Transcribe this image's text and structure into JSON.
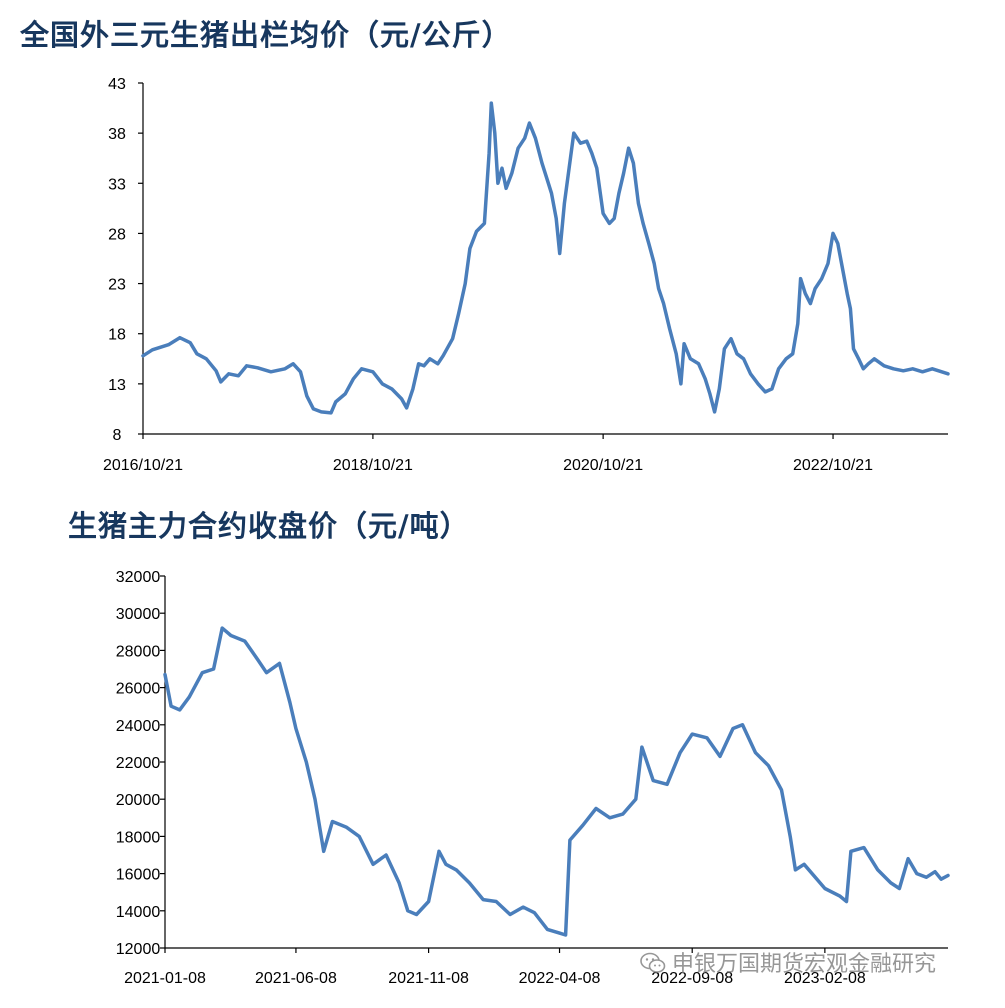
{
  "chart_data": [
    {
      "type": "line",
      "title": "全国外三元生猪出栏均价（元/公斤）",
      "ylim": [
        8,
        43
      ],
      "yticks": [
        8,
        13,
        18,
        23,
        28,
        33,
        38,
        43
      ],
      "xlim": [
        "2016/10/21",
        "2023/10/21"
      ],
      "xtick_labels": [
        "2016/10/21",
        "2018/10/21",
        "2020/10/21",
        "2022/10/21"
      ],
      "grid": false,
      "series": [
        {
          "color": "#4a7ebb",
          "points": [
            [
              "2016/10/21",
              15.8
            ],
            [
              "2016/11/20",
              16.4
            ],
            [
              "2017/01/10",
              16.9
            ],
            [
              "2017/02/15",
              17.6
            ],
            [
              "2017/03/20",
              17.1
            ],
            [
              "2017/04/10",
              16.0
            ],
            [
              "2017/05/10",
              15.5
            ],
            [
              "2017/06/10",
              14.3
            ],
            [
              "2017/06/25",
              13.2
            ],
            [
              "2017/07/20",
              14.0
            ],
            [
              "2017/08/20",
              13.8
            ],
            [
              "2017/09/15",
              14.8
            ],
            [
              "2017/10/20",
              14.6
            ],
            [
              "2017/12/01",
              14.2
            ],
            [
              "2018/01/15",
              14.5
            ],
            [
              "2018/02/10",
              15.0
            ],
            [
              "2018/03/05",
              14.2
            ],
            [
              "2018/03/25",
              11.8
            ],
            [
              "2018/04/15",
              10.5
            ],
            [
              "2018/05/10",
              10.2
            ],
            [
              "2018/06/10",
              10.1
            ],
            [
              "2018/06/25",
              11.2
            ],
            [
              "2018/07/25",
              12.0
            ],
            [
              "2018/08/20",
              13.5
            ],
            [
              "2018/09/15",
              14.5
            ],
            [
              "2018/10/21",
              14.2
            ],
            [
              "2018/11/20",
              13.0
            ],
            [
              "2018/12/20",
              12.5
            ],
            [
              "2019/01/20",
              11.5
            ],
            [
              "2019/02/05",
              10.6
            ],
            [
              "2019/02/25",
              12.5
            ],
            [
              "2019/03/15",
              15.0
            ],
            [
              "2019/04/01",
              14.8
            ],
            [
              "2019/04/20",
              15.5
            ],
            [
              "2019/05/15",
              15.0
            ],
            [
              "2019/06/01",
              15.8
            ],
            [
              "2019/07/01",
              17.5
            ],
            [
              "2019/07/20",
              20.0
            ],
            [
              "2019/08/10",
              23.0
            ],
            [
              "2019/08/25",
              26.5
            ],
            [
              "2019/09/15",
              28.2
            ],
            [
              "2019/10/10",
              29.0
            ],
            [
              "2019/10/25",
              36.0
            ],
            [
              "2019/11/01",
              41.0
            ],
            [
              "2019/11/12",
              38.0
            ],
            [
              "2019/11/22",
              33.0
            ],
            [
              "2019/12/05",
              34.5
            ],
            [
              "2019/12/18",
              32.5
            ],
            [
              "2020/01/05",
              34.0
            ],
            [
              "2020/01/25",
              36.5
            ],
            [
              "2020/02/15",
              37.5
            ],
            [
              "2020/03/01",
              39.0
            ],
            [
              "2020/03/20",
              37.5
            ],
            [
              "2020/04/10",
              35.0
            ],
            [
              "2020/04/25",
              33.5
            ],
            [
              "2020/05/10",
              32.0
            ],
            [
              "2020/05/25",
              29.5
            ],
            [
              "2020/06/05",
              26.0
            ],
            [
              "2020/06/20",
              31.0
            ],
            [
              "2020/07/05",
              34.5
            ],
            [
              "2020/07/20",
              38.0
            ],
            [
              "2020/08/10",
              37.0
            ],
            [
              "2020/08/30",
              37.2
            ],
            [
              "2020/09/15",
              36.0
            ],
            [
              "2020/10/01",
              34.5
            ],
            [
              "2020/10/21",
              30.0
            ],
            [
              "2020/11/10",
              29.0
            ],
            [
              "2020/11/25",
              29.5
            ],
            [
              "2020/12/10",
              32.0
            ],
            [
              "2020/12/25",
              34.0
            ],
            [
              "2021/01/10",
              36.5
            ],
            [
              "2021/01/25",
              35.0
            ],
            [
              "2021/02/10",
              31.0
            ],
            [
              "2021/02/25",
              29.0
            ],
            [
              "2021/03/15",
              27.0
            ],
            [
              "2021/04/01",
              25.0
            ],
            [
              "2021/04/15",
              22.5
            ],
            [
              "2021/05/01",
              21.0
            ],
            [
              "2021/05/20",
              18.5
            ],
            [
              "2021/06/10",
              16.0
            ],
            [
              "2021/06/25",
              13.0
            ],
            [
              "2021/07/05",
              17.0
            ],
            [
              "2021/07/25",
              15.5
            ],
            [
              "2021/08/20",
              15.0
            ],
            [
              "2021/09/10",
              13.5
            ],
            [
              "2021/09/25",
              12.0
            ],
            [
              "2021/10/10",
              10.2
            ],
            [
              "2021/10/25",
              12.5
            ],
            [
              "2021/11/10",
              16.5
            ],
            [
              "2021/12/01",
              17.5
            ],
            [
              "2021/12/20",
              16.0
            ],
            [
              "2022/01/10",
              15.5
            ],
            [
              "2022/02/01",
              14.0
            ],
            [
              "2022/02/25",
              13.0
            ],
            [
              "2022/03/20",
              12.2
            ],
            [
              "2022/04/10",
              12.5
            ],
            [
              "2022/05/01",
              14.5
            ],
            [
              "2022/05/25",
              15.5
            ],
            [
              "2022/06/15",
              16.0
            ],
            [
              "2022/07/01",
              19.0
            ],
            [
              "2022/07/10",
              23.5
            ],
            [
              "2022/07/25",
              22.0
            ],
            [
              "2022/08/10",
              21.0
            ],
            [
              "2022/08/25",
              22.5
            ],
            [
              "2022/09/15",
              23.5
            ],
            [
              "2022/10/05",
              25.0
            ],
            [
              "2022/10/21",
              28.0
            ],
            [
              "2022/11/05",
              27.0
            ],
            [
              "2022/11/20",
              24.5
            ],
            [
              "2022/12/05",
              22.0
            ],
            [
              "2022/12/15",
              20.5
            ],
            [
              "2022/12/25",
              16.5
            ],
            [
              "2023/01/10",
              15.5
            ],
            [
              "2023/01/25",
              14.5
            ],
            [
              "2023/02/10",
              15.0
            ],
            [
              "2023/03/01",
              15.5
            ],
            [
              "2023/04/01",
              14.8
            ],
            [
              "2023/05/01",
              14.5
            ],
            [
              "2023/06/01",
              14.3
            ],
            [
              "2023/07/01",
              14.5
            ],
            [
              "2023/08/01",
              14.2
            ],
            [
              "2023/09/01",
              14.5
            ],
            [
              "2023/10/21",
              14.0
            ]
          ]
        }
      ]
    },
    {
      "type": "line",
      "title": "生猪主力合约收盘价（元/吨）",
      "ylim": [
        12000,
        32000
      ],
      "yticks": [
        12000,
        14000,
        16000,
        18000,
        20000,
        22000,
        24000,
        26000,
        28000,
        30000,
        32000
      ],
      "xlim": [
        "2021-01-08",
        "2023-06-30"
      ],
      "xtick_labels": [
        "2021-01-08",
        "2021-06-08",
        "2021-11-08",
        "2022-04-08",
        "2022-09-08",
        "2023-02-08"
      ],
      "grid": false,
      "series": [
        {
          "color": "#4a7ebb",
          "points": [
            [
              "2021-01-08",
              26700
            ],
            [
              "2021-01-15",
              25000
            ],
            [
              "2021-01-25",
              24800
            ],
            [
              "2021-02-05",
              25500
            ],
            [
              "2021-02-20",
              26800
            ],
            [
              "2021-03-05",
              27000
            ],
            [
              "2021-03-15",
              29200
            ],
            [
              "2021-03-25",
              28800
            ],
            [
              "2021-04-10",
              28500
            ],
            [
              "2021-04-25",
              27500
            ],
            [
              "2021-05-05",
              26800
            ],
            [
              "2021-05-20",
              27300
            ],
            [
              "2021-06-01",
              25200
            ],
            [
              "2021-06-08",
              23800
            ],
            [
              "2021-06-20",
              22000
            ],
            [
              "2021-06-30",
              20000
            ],
            [
              "2021-07-10",
              17200
            ],
            [
              "2021-07-20",
              18800
            ],
            [
              "2021-08-05",
              18500
            ],
            [
              "2021-08-20",
              18000
            ],
            [
              "2021-09-05",
              16500
            ],
            [
              "2021-09-20",
              17000
            ],
            [
              "2021-10-05",
              15500
            ],
            [
              "2021-10-15",
              14000
            ],
            [
              "2021-10-25",
              13800
            ],
            [
              "2021-11-08",
              14500
            ],
            [
              "2021-11-20",
              17200
            ],
            [
              "2021-11-28",
              16500
            ],
            [
              "2021-12-10",
              16200
            ],
            [
              "2021-12-25",
              15500
            ],
            [
              "2022-01-10",
              14600
            ],
            [
              "2022-01-25",
              14500
            ],
            [
              "2022-02-10",
              13800
            ],
            [
              "2022-02-25",
              14200
            ],
            [
              "2022-03-10",
              13900
            ],
            [
              "2022-03-25",
              13000
            ],
            [
              "2022-04-08",
              12800
            ],
            [
              "2022-04-15",
              12700
            ],
            [
              "2022-04-20",
              17800
            ],
            [
              "2022-05-05",
              18600
            ],
            [
              "2022-05-20",
              19500
            ],
            [
              "2022-06-05",
              19000
            ],
            [
              "2022-06-20",
              19200
            ],
            [
              "2022-07-05",
              20000
            ],
            [
              "2022-07-12",
              22800
            ],
            [
              "2022-07-25",
              21000
            ],
            [
              "2022-08-10",
              20800
            ],
            [
              "2022-08-25",
              22500
            ],
            [
              "2022-09-08",
              23500
            ],
            [
              "2022-09-25",
              23300
            ],
            [
              "2022-10-10",
              22300
            ],
            [
              "2022-10-25",
              23800
            ],
            [
              "2022-11-05",
              24000
            ],
            [
              "2022-11-20",
              22500
            ],
            [
              "2022-12-05",
              21800
            ],
            [
              "2022-12-20",
              20500
            ],
            [
              "2022-12-30",
              18000
            ],
            [
              "2023-01-05",
              16200
            ],
            [
              "2023-01-15",
              16500
            ],
            [
              "2023-02-08",
              15200
            ],
            [
              "2023-02-25",
              14800
            ],
            [
              "2023-03-05",
              14500
            ],
            [
              "2023-03-10",
              17200
            ],
            [
              "2023-03-25",
              17400
            ],
            [
              "2023-04-10",
              16200
            ],
            [
              "2023-04-25",
              15500
            ],
            [
              "2023-05-05",
              15200
            ],
            [
              "2023-05-15",
              16800
            ],
            [
              "2023-05-25",
              16000
            ],
            [
              "2023-06-05",
              15800
            ],
            [
              "2023-06-15",
              16100
            ],
            [
              "2023-06-22",
              15700
            ],
            [
              "2023-06-30",
              15900
            ]
          ]
        }
      ]
    }
  ],
  "watermark": {
    "text": "申银万国期货宏观金融研究",
    "icon": "wechat-icon"
  }
}
